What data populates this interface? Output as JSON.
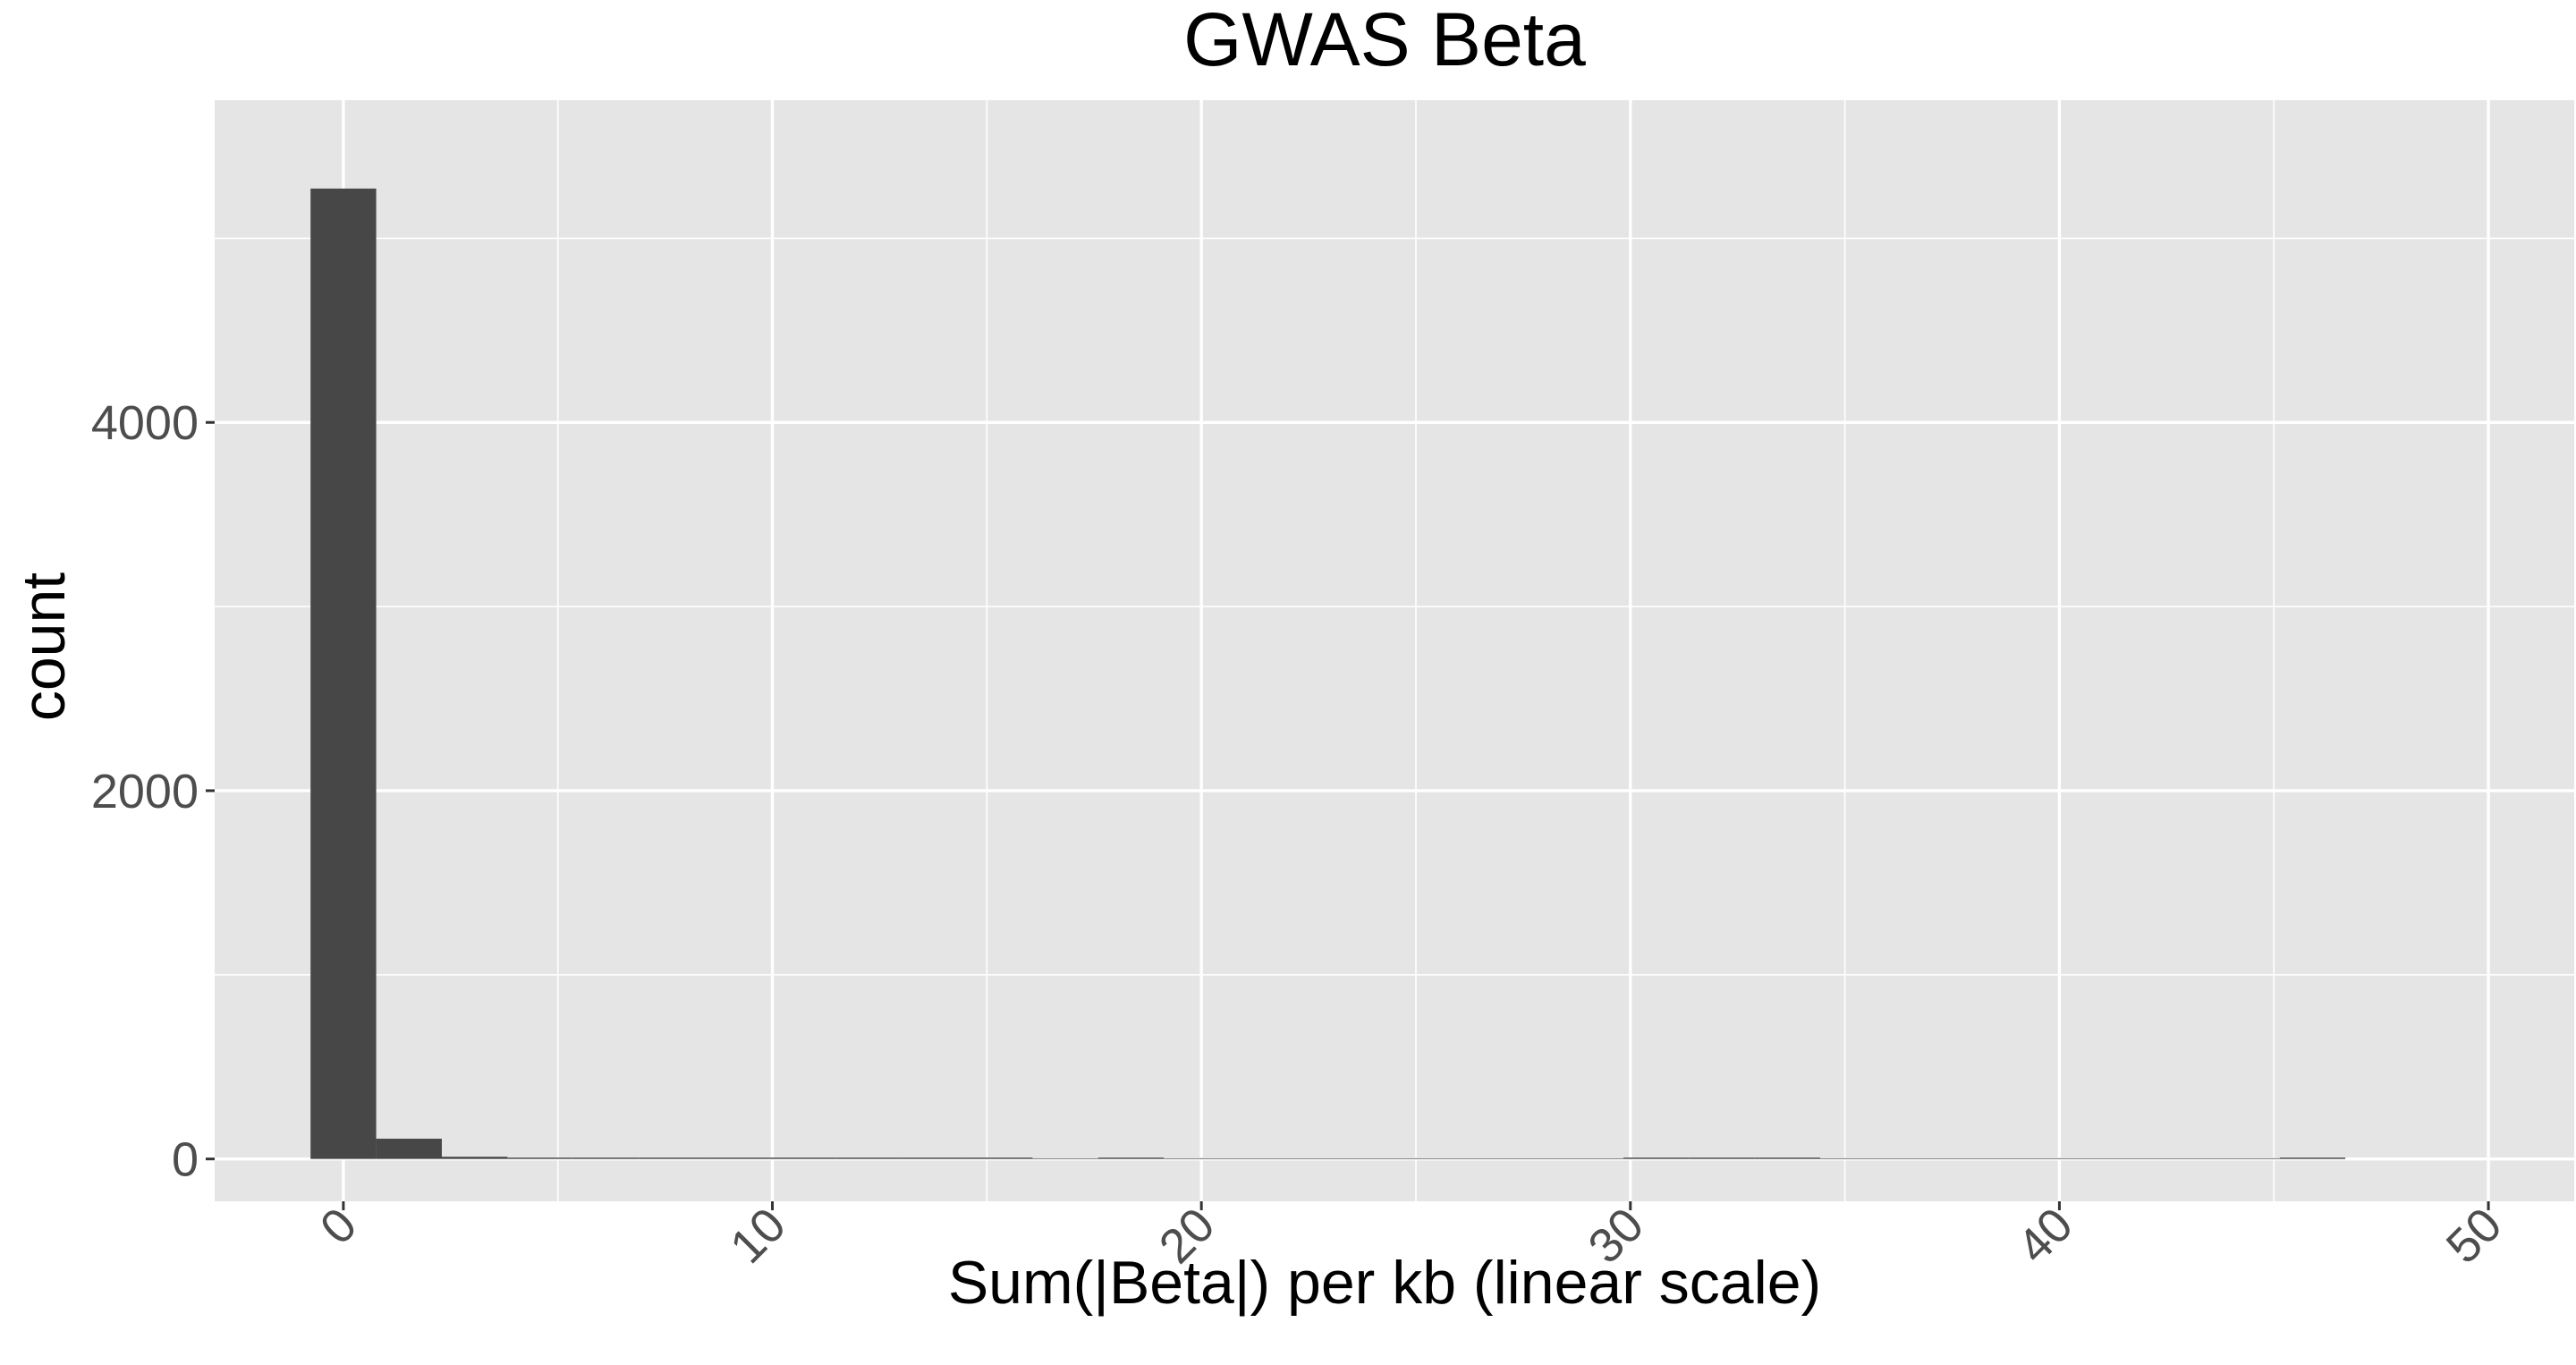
{
  "chart_data": {
    "type": "bar",
    "title": "GWAS Beta",
    "xlabel": "Sum(|Beta|) per kb (linear scale)",
    "ylabel": "count",
    "xlim": [
      -3,
      52
    ],
    "ylim": [
      -230,
      5750
    ],
    "x_ticks": [
      0,
      10,
      20,
      30,
      40,
      50
    ],
    "x_tick_labels": [
      "0",
      "10",
      "20",
      "30",
      "40",
      "50"
    ],
    "y_ticks": [
      0,
      2000,
      4000
    ],
    "y_tick_labels": [
      "0",
      "2000",
      "4000"
    ],
    "x_minor_ticks": [
      5,
      15,
      25,
      35,
      45
    ],
    "y_minor_ticks": [
      1000,
      3000,
      5000
    ],
    "bin_width": 1.53,
    "bin_centers": [
      0,
      1.53,
      3.06,
      4.59,
      6.12,
      7.65,
      9.18,
      10.71,
      12.24,
      13.77,
      15.3,
      16.83,
      18.36,
      19.89,
      21.42,
      22.95,
      24.48,
      26.01,
      27.54,
      29.07,
      30.6,
      32.13,
      33.66,
      35.19,
      36.72,
      38.25,
      39.78,
      41.31,
      42.84,
      44.37,
      45.9
    ],
    "values": [
      5270,
      110,
      12,
      6,
      3,
      2,
      3,
      1,
      1,
      1,
      1,
      0,
      1,
      0,
      0,
      0,
      0,
      0,
      0,
      0,
      1,
      1,
      1,
      0,
      0,
      0,
      0,
      0,
      0,
      0,
      1
    ],
    "bar_color": "#474747",
    "panel_color": "#e5e5e5",
    "grid_color": "#ffffff",
    "grid": true,
    "legend": "none"
  }
}
